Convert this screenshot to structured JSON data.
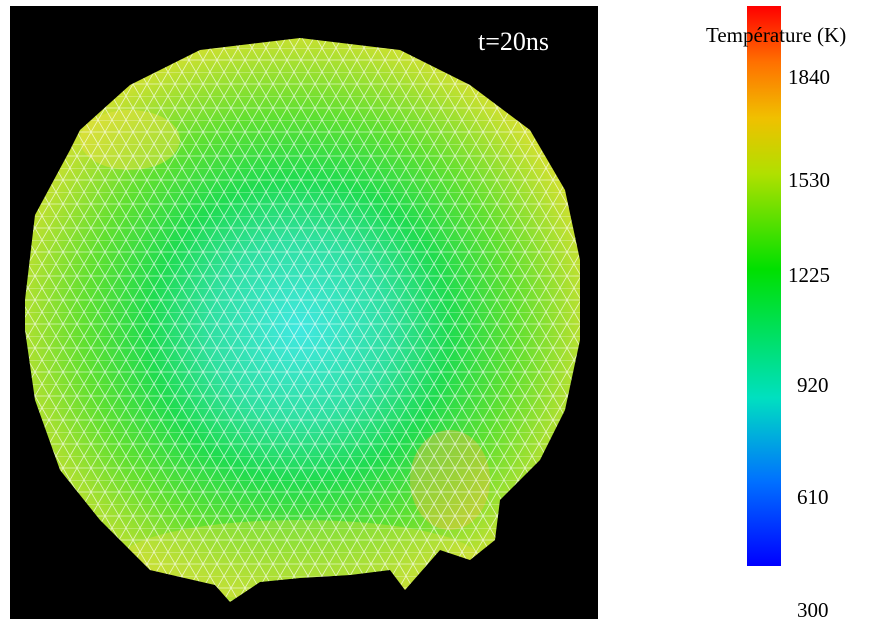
{
  "image": {
    "label": "t=20ns"
  },
  "colorbar": {
    "title": "Température (K)",
    "ticks": [
      "1840",
      "1530",
      "1225",
      "920",
      "610",
      "300"
    ]
  }
}
